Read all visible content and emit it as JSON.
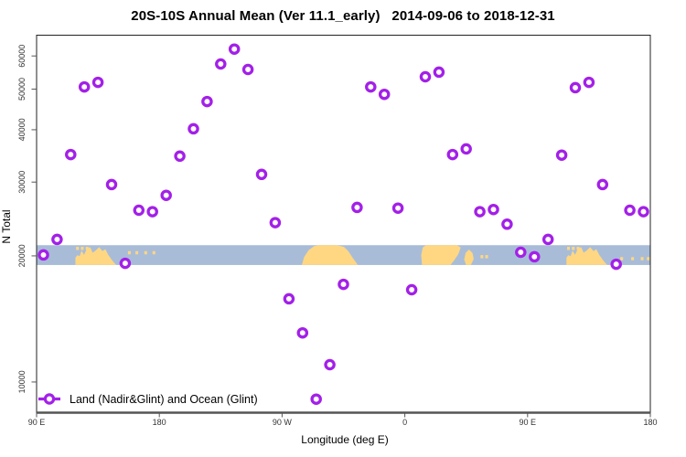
{
  "title": "20S-10S Annual Mean (Ver 11.1_early)   2014-09-06 to 2018-12-31",
  "chart_data": {
    "type": "scatter",
    "title": "20S-10S Annual Mean (Ver 11.1_early)   2014-09-06 to 2018-12-31",
    "xlabel": "Longitude (deg E)",
    "ylabel": "N Total",
    "yscale": "log",
    "grid": false,
    "xlim": [
      90,
      540
    ],
    "ylim": [
      8470,
      67250
    ],
    "x_ticks": [
      {
        "lon": 90,
        "label": "90 E"
      },
      {
        "lon": 180,
        "label": "180"
      },
      {
        "lon": 270,
        "label": "90 W"
      },
      {
        "lon": 360,
        "label": "0"
      },
      {
        "lon": 450,
        "label": "90 E"
      },
      {
        "lon": 540,
        "label": "180"
      }
    ],
    "y_ticks": [
      {
        "value": 10000,
        "label": "10000"
      },
      {
        "value": 20000,
        "label": "20000"
      },
      {
        "value": 30000,
        "label": "30000"
      },
      {
        "value": 40000,
        "label": "40000"
      },
      {
        "value": 50000,
        "label": "50000"
      },
      {
        "value": 60000,
        "label": "60000"
      }
    ],
    "point_color": "#A320E8",
    "legend": {
      "position": "bottom-left",
      "label": "Land (Nadir&Glint) and Ocean (Glint)"
    },
    "map_band": {
      "value_range": [
        19020,
        21210
      ],
      "ocean_color": "#A8BCD8",
      "land_color": "#FFD782",
      "segments": [
        {
          "shape": "australia",
          "from": 118.5,
          "to": 148.5
        },
        {
          "shape": "dots",
          "lons": [
            120,
            123.5,
            127
          ],
          "level": 0.08
        },
        {
          "shape": "dots",
          "lons": [
            158,
            163.5,
            170,
            176
          ],
          "level": 0.3
        },
        {
          "shape": "southamerica",
          "from": 284.5,
          "to": 325.5
        },
        {
          "shape": "africa",
          "from": 372,
          "to": 401
        },
        {
          "shape": "blob",
          "from": 403.5,
          "to": 410.5
        },
        {
          "shape": "dots",
          "lons": [
            416.5,
            420
          ],
          "level": 0.5
        },
        {
          "shape": "australia",
          "from": 478.5,
          "to": 508.5
        },
        {
          "shape": "dots",
          "lons": [
            480,
            483.5,
            487
          ],
          "level": 0.08
        },
        {
          "shape": "dots",
          "lons": [
            519,
            527,
            534,
            538.5
          ],
          "level": 0.6
        }
      ]
    },
    "series": [
      {
        "name": "Land (Nadir&Glint) and Ocean (Glint)",
        "points": [
          {
            "lon": 95,
            "label": "95E",
            "n": 20100
          },
          {
            "lon": 105,
            "label": "105E",
            "n": 21900
          },
          {
            "lon": 115,
            "label": "115E",
            "n": 34900
          },
          {
            "lon": 125,
            "label": "125E",
            "n": 50600
          },
          {
            "lon": 135,
            "label": "135E",
            "n": 51900
          },
          {
            "lon": 145,
            "label": "145E",
            "n": 29600
          },
          {
            "lon": 155,
            "label": "155E",
            "n": 19200
          },
          {
            "lon": 165,
            "label": "165E",
            "n": 25700
          },
          {
            "lon": 175,
            "label": "175E",
            "n": 25500
          },
          {
            "lon": 185,
            "label": "175W",
            "n": 27900
          },
          {
            "lon": 195,
            "label": "165W",
            "n": 34600
          },
          {
            "lon": 205,
            "label": "155W",
            "n": 40200
          },
          {
            "lon": 215,
            "label": "145W",
            "n": 46700
          },
          {
            "lon": 225,
            "label": "135W",
            "n": 57400
          },
          {
            "lon": 235,
            "label": "125W",
            "n": 62300
          },
          {
            "lon": 245,
            "label": "115W",
            "n": 55700
          },
          {
            "lon": 255,
            "label": "105W",
            "n": 31300
          },
          {
            "lon": 265,
            "label": "95W",
            "n": 24000
          },
          {
            "lon": 275,
            "label": "85W",
            "n": 15800
          },
          {
            "lon": 285,
            "label": "75W",
            "n": 13100
          },
          {
            "lon": 295,
            "label": "65W",
            "n": 9100
          },
          {
            "lon": 305,
            "label": "55W",
            "n": 11000
          },
          {
            "lon": 315,
            "label": "45W",
            "n": 17100
          },
          {
            "lon": 325,
            "label": "35W",
            "n": 26100
          },
          {
            "lon": 335,
            "label": "25W",
            "n": 50600
          },
          {
            "lon": 345,
            "label": "15W",
            "n": 48600
          },
          {
            "lon": 355,
            "label": "5W",
            "n": 26000
          },
          {
            "lon": 365,
            "label": "5E",
            "n": 16600
          },
          {
            "lon": 375,
            "label": "15E",
            "n": 53500
          },
          {
            "lon": 385,
            "label": "25E",
            "n": 54900
          },
          {
            "lon": 395,
            "label": "35E",
            "n": 34900
          },
          {
            "lon": 405,
            "label": "45E",
            "n": 36000
          },
          {
            "lon": 415,
            "label": "55E",
            "n": 25500
          },
          {
            "lon": 425,
            "label": "65E",
            "n": 25800
          },
          {
            "lon": 435,
            "label": "75E",
            "n": 23800
          },
          {
            "lon": 445,
            "label": "85E",
            "n": 20400
          },
          {
            "lon": 455,
            "label": "95E",
            "n": 19900
          },
          {
            "lon": 465,
            "label": "105E",
            "n": 21900
          },
          {
            "lon": 475,
            "label": "115E",
            "n": 34800
          },
          {
            "lon": 485,
            "label": "125E",
            "n": 50400
          },
          {
            "lon": 495,
            "label": "135E",
            "n": 51900
          },
          {
            "lon": 505,
            "label": "145E",
            "n": 29600
          },
          {
            "lon": 515,
            "label": "155E",
            "n": 19100
          },
          {
            "lon": 525,
            "label": "165E",
            "n": 25700
          },
          {
            "lon": 535,
            "label": "175E",
            "n": 25500
          }
        ]
      }
    ]
  }
}
